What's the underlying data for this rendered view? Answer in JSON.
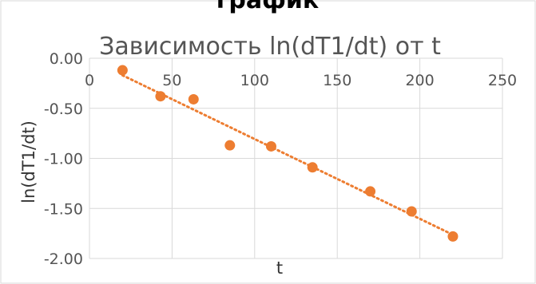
{
  "top_fragment": "график",
  "chart_data": {
    "type": "scatter",
    "title": "Зависимость ln(dT1/dt) от t",
    "xlabel": "t",
    "ylabel": "ln(dT1/dt)",
    "xlim": [
      0,
      250
    ],
    "ylim": [
      -2.0,
      0.0
    ],
    "x_ticks": [
      0,
      50,
      100,
      150,
      200,
      250
    ],
    "y_ticks": [
      0.0,
      -0.5,
      -1.0,
      -1.5,
      -2.0
    ],
    "x_tick_labels": [
      "0",
      "50",
      "100",
      "150",
      "200",
      "250"
    ],
    "y_tick_labels": [
      "0.00",
      "-0.50",
      "-1.00",
      "-1.50",
      "-2.00"
    ],
    "grid": true,
    "trendline": "linear",
    "series": [
      {
        "x": [
          20,
          43,
          63,
          85,
          110,
          135,
          170,
          195,
          220
        ],
        "y": [
          -0.12,
          -0.38,
          -0.41,
          -0.87,
          -0.88,
          -1.09,
          -1.33,
          -1.53,
          -1.78
        ]
      }
    ],
    "colors": {
      "points": "#ED7D31",
      "trend": "#ED7D31",
      "grid": "#D9D9D9"
    }
  }
}
